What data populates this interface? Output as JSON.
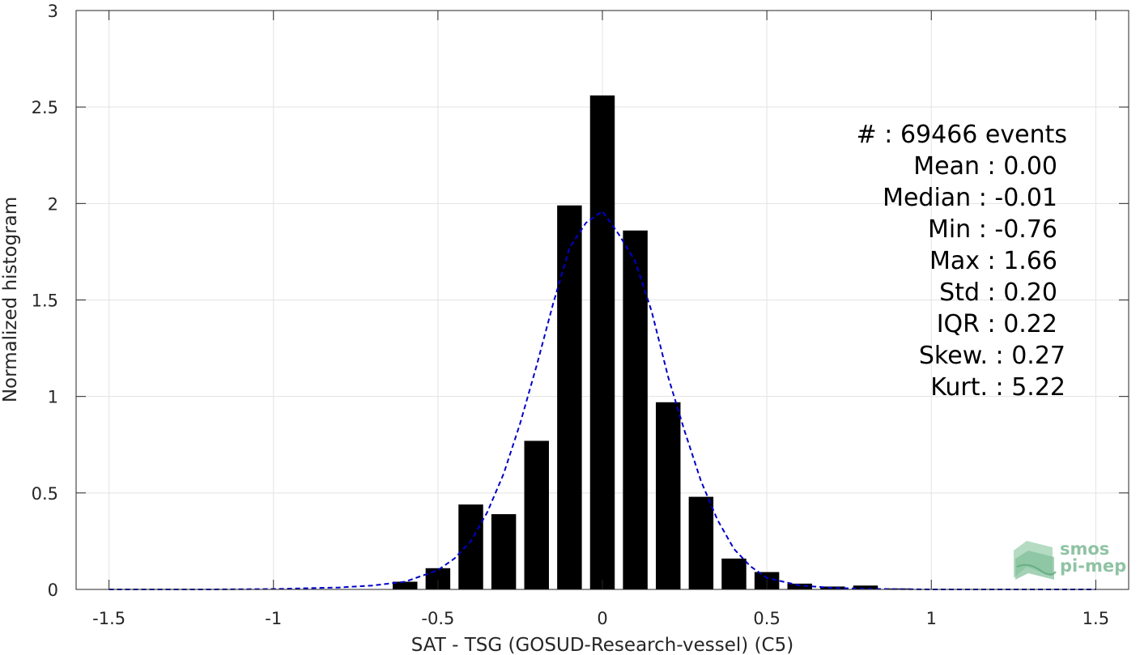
{
  "chart_data": {
    "type": "bar",
    "xlabel": "SAT - TSG (GOSUD-Research-vessel) (C5)",
    "ylabel": "Normalized histogram",
    "xlim": [
      -1.6,
      1.6
    ],
    "ylim": [
      0,
      3
    ],
    "grid": true,
    "xticks": [
      -1.5,
      -1,
      -0.5,
      0,
      0.5,
      1,
      1.5
    ],
    "xtick_labels": [
      "-1.5",
      "-1",
      "-0.5",
      "0",
      "0.5",
      "1",
      "1.5"
    ],
    "yticks": [
      0,
      0.5,
      1,
      1.5,
      2,
      2.5,
      3
    ],
    "ytick_labels": [
      "0",
      "0.5",
      "1",
      "1.5",
      "2",
      "2.5",
      "3"
    ],
    "bar_width": 0.075,
    "bar_color": "#000000",
    "bins": [
      -0.6,
      -0.5,
      -0.4,
      -0.3,
      -0.2,
      -0.1,
      0.0,
      0.1,
      0.2,
      0.3,
      0.4,
      0.5,
      0.6,
      0.7,
      0.8,
      0.9
    ],
    "values": [
      0.04,
      0.11,
      0.44,
      0.39,
      0.77,
      1.99,
      2.56,
      1.86,
      0.97,
      0.48,
      0.16,
      0.09,
      0.03,
      0.015,
      0.02,
      0.005
    ],
    "fit_curve": {
      "style": "dashed",
      "color": "#0000cc",
      "x": [
        -1.5,
        -1.2,
        -1.0,
        -0.8,
        -0.7,
        -0.6,
        -0.5,
        -0.45,
        -0.4,
        -0.35,
        -0.3,
        -0.25,
        -0.2,
        -0.15,
        -0.1,
        -0.05,
        0.0,
        0.05,
        0.1,
        0.15,
        0.2,
        0.25,
        0.3,
        0.35,
        0.4,
        0.45,
        0.5,
        0.6,
        0.7,
        0.8,
        1.0,
        1.2,
        1.5
      ],
      "y": [
        0,
        0,
        0.002,
        0.01,
        0.02,
        0.04,
        0.1,
        0.16,
        0.25,
        0.4,
        0.6,
        0.86,
        1.16,
        1.48,
        1.77,
        1.9,
        1.96,
        1.84,
        1.7,
        1.44,
        1.1,
        0.82,
        0.56,
        0.36,
        0.21,
        0.12,
        0.06,
        0.02,
        0.008,
        0.003,
        0,
        0,
        0
      ]
    },
    "annotations": [
      "#  : 69466 events",
      "Mean : 0.00",
      "Median : -0.01",
      "Min : -0.76",
      "Max : 1.66",
      "Std : 0.20",
      "IQR : 0.22",
      "Skew. : 0.27",
      "Kurt. : 5.22"
    ]
  },
  "logo": {
    "line1": "smos",
    "line2": "pi-mep"
  }
}
